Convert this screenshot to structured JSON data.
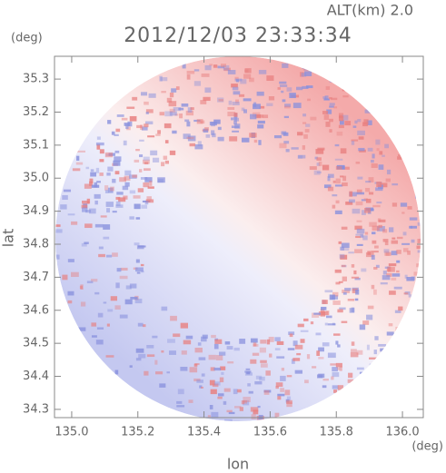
{
  "chart_data": {
    "type": "radar-image",
    "subtitle": "ALT(km)  2.0",
    "title": "2012/12/03 23:33:34",
    "x_label": "lon",
    "x_unit": "(deg)",
    "y_label": "lat",
    "y_unit": "(deg)",
    "xlim": [
      134.948,
      136.063
    ],
    "xticks": [
      {
        "value": 135.0,
        "label": "135.0"
      },
      135.2,
      135.4,
      135.6,
      135.8,
      {
        "value": 136.0,
        "label": "136.0"
      }
    ],
    "ylim": [
      34.275,
      35.369
    ],
    "yticks": [
      34.3,
      34.4,
      34.5,
      34.6,
      34.7,
      34.8,
      34.9,
      {
        "value": 35.0,
        "label": "35.0"
      },
      35.1,
      35.2,
      35.3
    ]
  }
}
